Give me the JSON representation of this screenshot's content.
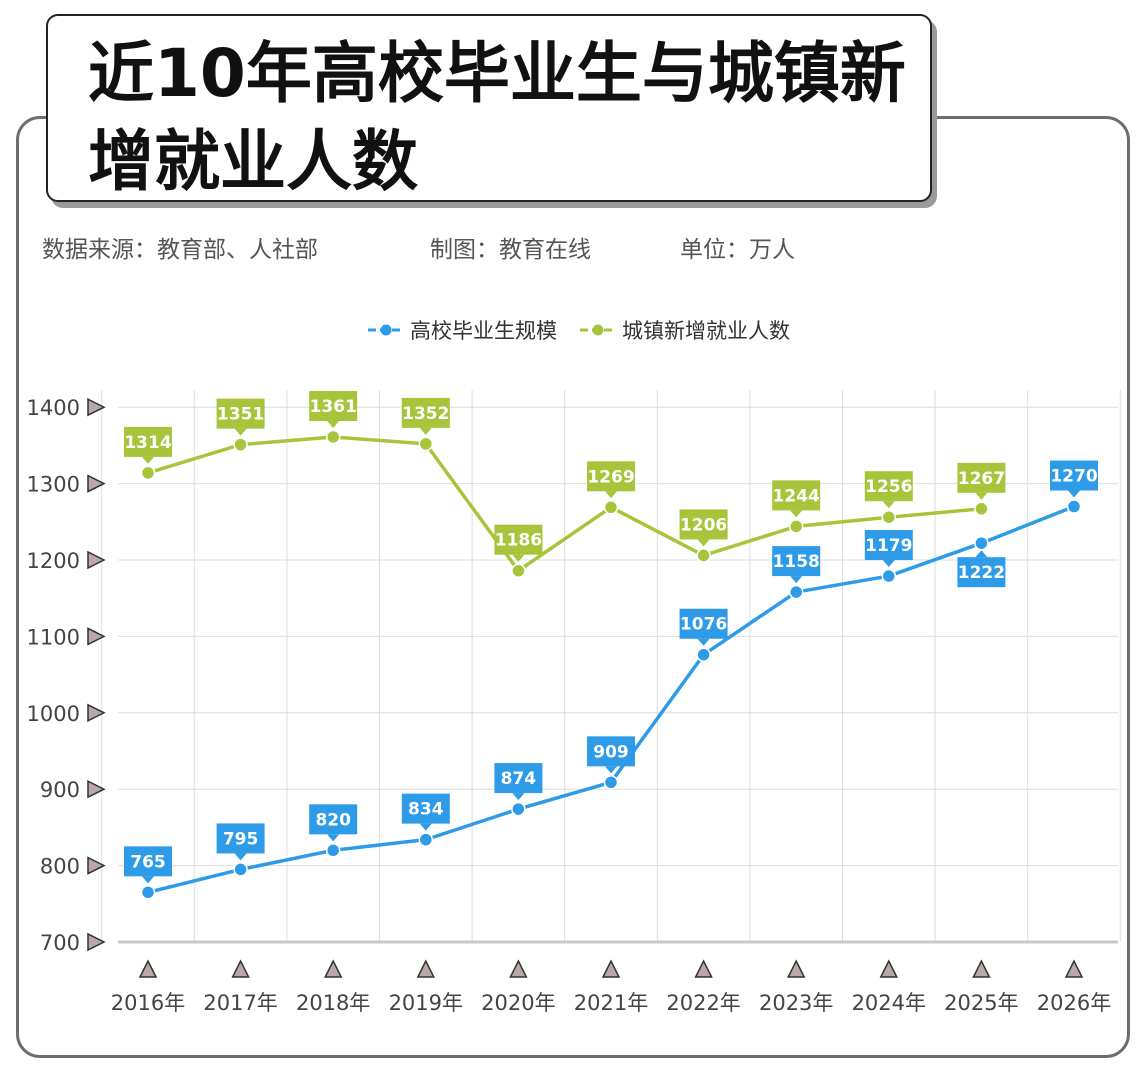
{
  "header": {
    "title": "近10年高校毕业生与城镇新增就业人数",
    "source": "数据来源：教育部、人社部",
    "producer": "制图：教育在线",
    "unit": "单位：万人"
  },
  "colors": {
    "graduates": "#2e9be8",
    "employment": "#a7c43a",
    "grid": "#dddddd",
    "axis_text": "#444444"
  },
  "chart_data": {
    "type": "line",
    "categories": [
      "2016年",
      "2017年",
      "2018年",
      "2019年",
      "2020年",
      "2021年",
      "2022年",
      "2023年",
      "2024年",
      "2025年",
      "2026年"
    ],
    "ylim": [
      700,
      1400
    ],
    "yticks": [
      "700",
      "800",
      "900",
      "1000",
      "1100",
      "1200",
      "1300",
      "1400"
    ],
    "grid": true,
    "legend_position": "top-center",
    "series": [
      {
        "name": "高校毕业生规模",
        "color": "#2e9be8",
        "values": [
          765,
          795,
          820,
          834,
          874,
          909,
          1076,
          1158,
          1179,
          1222,
          1270
        ]
      },
      {
        "name": "城镇新增就业人数",
        "color": "#a7c43a",
        "values": [
          1314,
          1351,
          1361,
          1352,
          1186,
          1269,
          1206,
          1244,
          1256,
          1267,
          null
        ]
      }
    ]
  }
}
